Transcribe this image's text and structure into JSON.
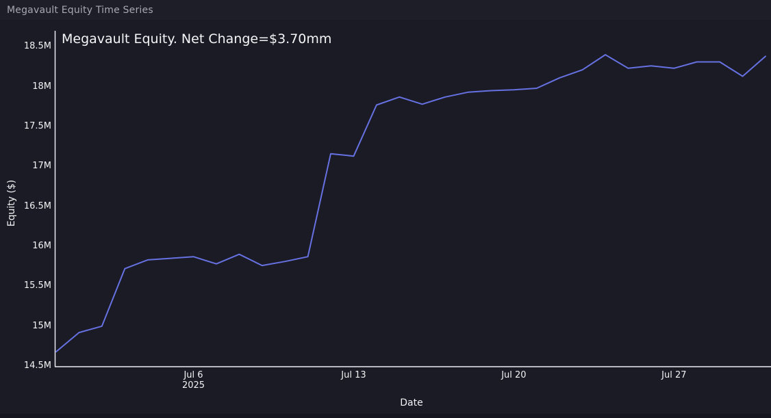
{
  "page": {
    "header_title": "Megavault Equity Time Series"
  },
  "chart_data": {
    "type": "line",
    "title": "Megavault Equity. Net Change=$3.70mm",
    "xlabel": "Date",
    "ylabel": "Equity ($)",
    "net_change_label": "$3.70mm",
    "grid": false,
    "legend": false,
    "x": [
      "2025-06-30",
      "2025-07-01",
      "2025-07-02",
      "2025-07-03",
      "2025-07-04",
      "2025-07-05",
      "2025-07-06",
      "2025-07-07",
      "2025-07-08",
      "2025-07-09",
      "2025-07-10",
      "2025-07-11",
      "2025-07-12",
      "2025-07-13",
      "2025-07-14",
      "2025-07-15",
      "2025-07-16",
      "2025-07-17",
      "2025-07-18",
      "2025-07-19",
      "2025-07-20",
      "2025-07-21",
      "2025-07-22",
      "2025-07-23",
      "2025-07-24",
      "2025-07-25",
      "2025-07-26",
      "2025-07-27",
      "2025-07-28",
      "2025-07-29",
      "2025-07-30",
      "2025-07-31"
    ],
    "values_millions": [
      14.68,
      14.92,
      15.0,
      15.72,
      15.83,
      15.85,
      15.87,
      15.78,
      15.9,
      15.76,
      15.81,
      15.87,
      17.16,
      17.13,
      17.77,
      17.87,
      17.78,
      17.87,
      17.93,
      17.95,
      17.96,
      17.98,
      18.11,
      18.21,
      18.4,
      18.23,
      18.26,
      18.23,
      18.31,
      18.31,
      18.13,
      18.38
    ],
    "ylim": [
      14.5,
      18.77
    ],
    "y_ticks": [
      {
        "value": 14.5,
        "label": "14.5M"
      },
      {
        "value": 15.0,
        "label": "15M"
      },
      {
        "value": 15.5,
        "label": "15.5M"
      },
      {
        "value": 16.0,
        "label": "16M"
      },
      {
        "value": 16.5,
        "label": "16.5M"
      },
      {
        "value": 17.0,
        "label": "17M"
      },
      {
        "value": 17.5,
        "label": "17.5M"
      },
      {
        "value": 18.0,
        "label": "18M"
      },
      {
        "value": 18.5,
        "label": "18.5M"
      }
    ],
    "x_ticks": [
      {
        "index": 6,
        "label": "Jul 6",
        "sublabel": "2025"
      },
      {
        "index": 13,
        "label": "Jul 13",
        "sublabel": ""
      },
      {
        "index": 20,
        "label": "Jul 20",
        "sublabel": ""
      },
      {
        "index": 27,
        "label": "Jul 27",
        "sublabel": ""
      }
    ],
    "colors": {
      "line": "#6671e2",
      "axis_line": "#eaeaf0",
      "tick_text": "#f2f2f4",
      "title_text": "#f5f5f7",
      "header_text": "#a7a8b3",
      "header_bg": "#1e1e28",
      "plot_bg": "#1b1b26",
      "page_bg": "#15151f"
    }
  }
}
